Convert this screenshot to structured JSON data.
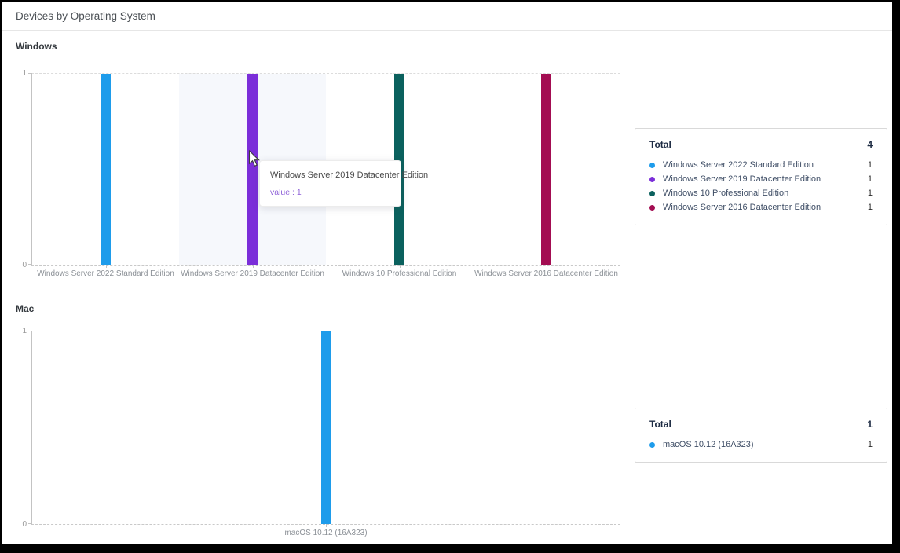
{
  "page": {
    "title": "Devices by Operating System"
  },
  "chart_data": [
    {
      "type": "bar",
      "title": "Windows",
      "categories": [
        "Windows Server 2022 Standard Edition",
        "Windows Server 2019 Datacenter Edition",
        "Windows 10 Professional Edition",
        "Windows Server 2016 Datacenter Edition"
      ],
      "values": [
        1,
        1,
        1,
        1
      ],
      "bar_colors": [
        "#1E9CEB",
        "#7B2ED9",
        "#0B615E",
        "#A30D52"
      ],
      "ylim": [
        0,
        1
      ],
      "ytick_labels": [
        "0",
        "1"
      ],
      "grid": "dashed-plot-border",
      "legend_position": "right",
      "highlighted_category_index": 1,
      "highlight_color": "#f6f8fc"
    },
    {
      "type": "bar",
      "title": "Mac",
      "categories": [
        "macOS 10.12 (16A323)"
      ],
      "values": [
        1
      ],
      "bar_colors": [
        "#1E9CEB"
      ],
      "ylim": [
        0,
        1
      ],
      "ytick_labels": [
        "0",
        "1"
      ],
      "grid": "dashed-plot-border",
      "legend_position": "right"
    }
  ],
  "sections": [
    {
      "label": "Windows",
      "legend": {
        "title": "Total",
        "total": "4",
        "items": [
          {
            "label": "Windows Server 2022 Standard Edition",
            "value": "1",
            "color": "#1E9CEB"
          },
          {
            "label": "Windows Server 2019 Datacenter Edition",
            "value": "1",
            "color": "#7B2ED9"
          },
          {
            "label": "Windows 10 Professional Edition",
            "value": "1",
            "color": "#0B615E"
          },
          {
            "label": "Windows Server 2016 Datacenter Edition",
            "value": "1",
            "color": "#A30D52"
          }
        ]
      }
    },
    {
      "label": "Mac",
      "legend": {
        "title": "Total",
        "total": "1",
        "items": [
          {
            "label": "macOS 10.12 (16A323)",
            "value": "1",
            "color": "#1E9CEB"
          }
        ]
      }
    }
  ],
  "tooltip": {
    "title": "Windows Server 2019 Datacenter Edition",
    "value_text": "value : 1",
    "value_color": "#8F63D8"
  }
}
